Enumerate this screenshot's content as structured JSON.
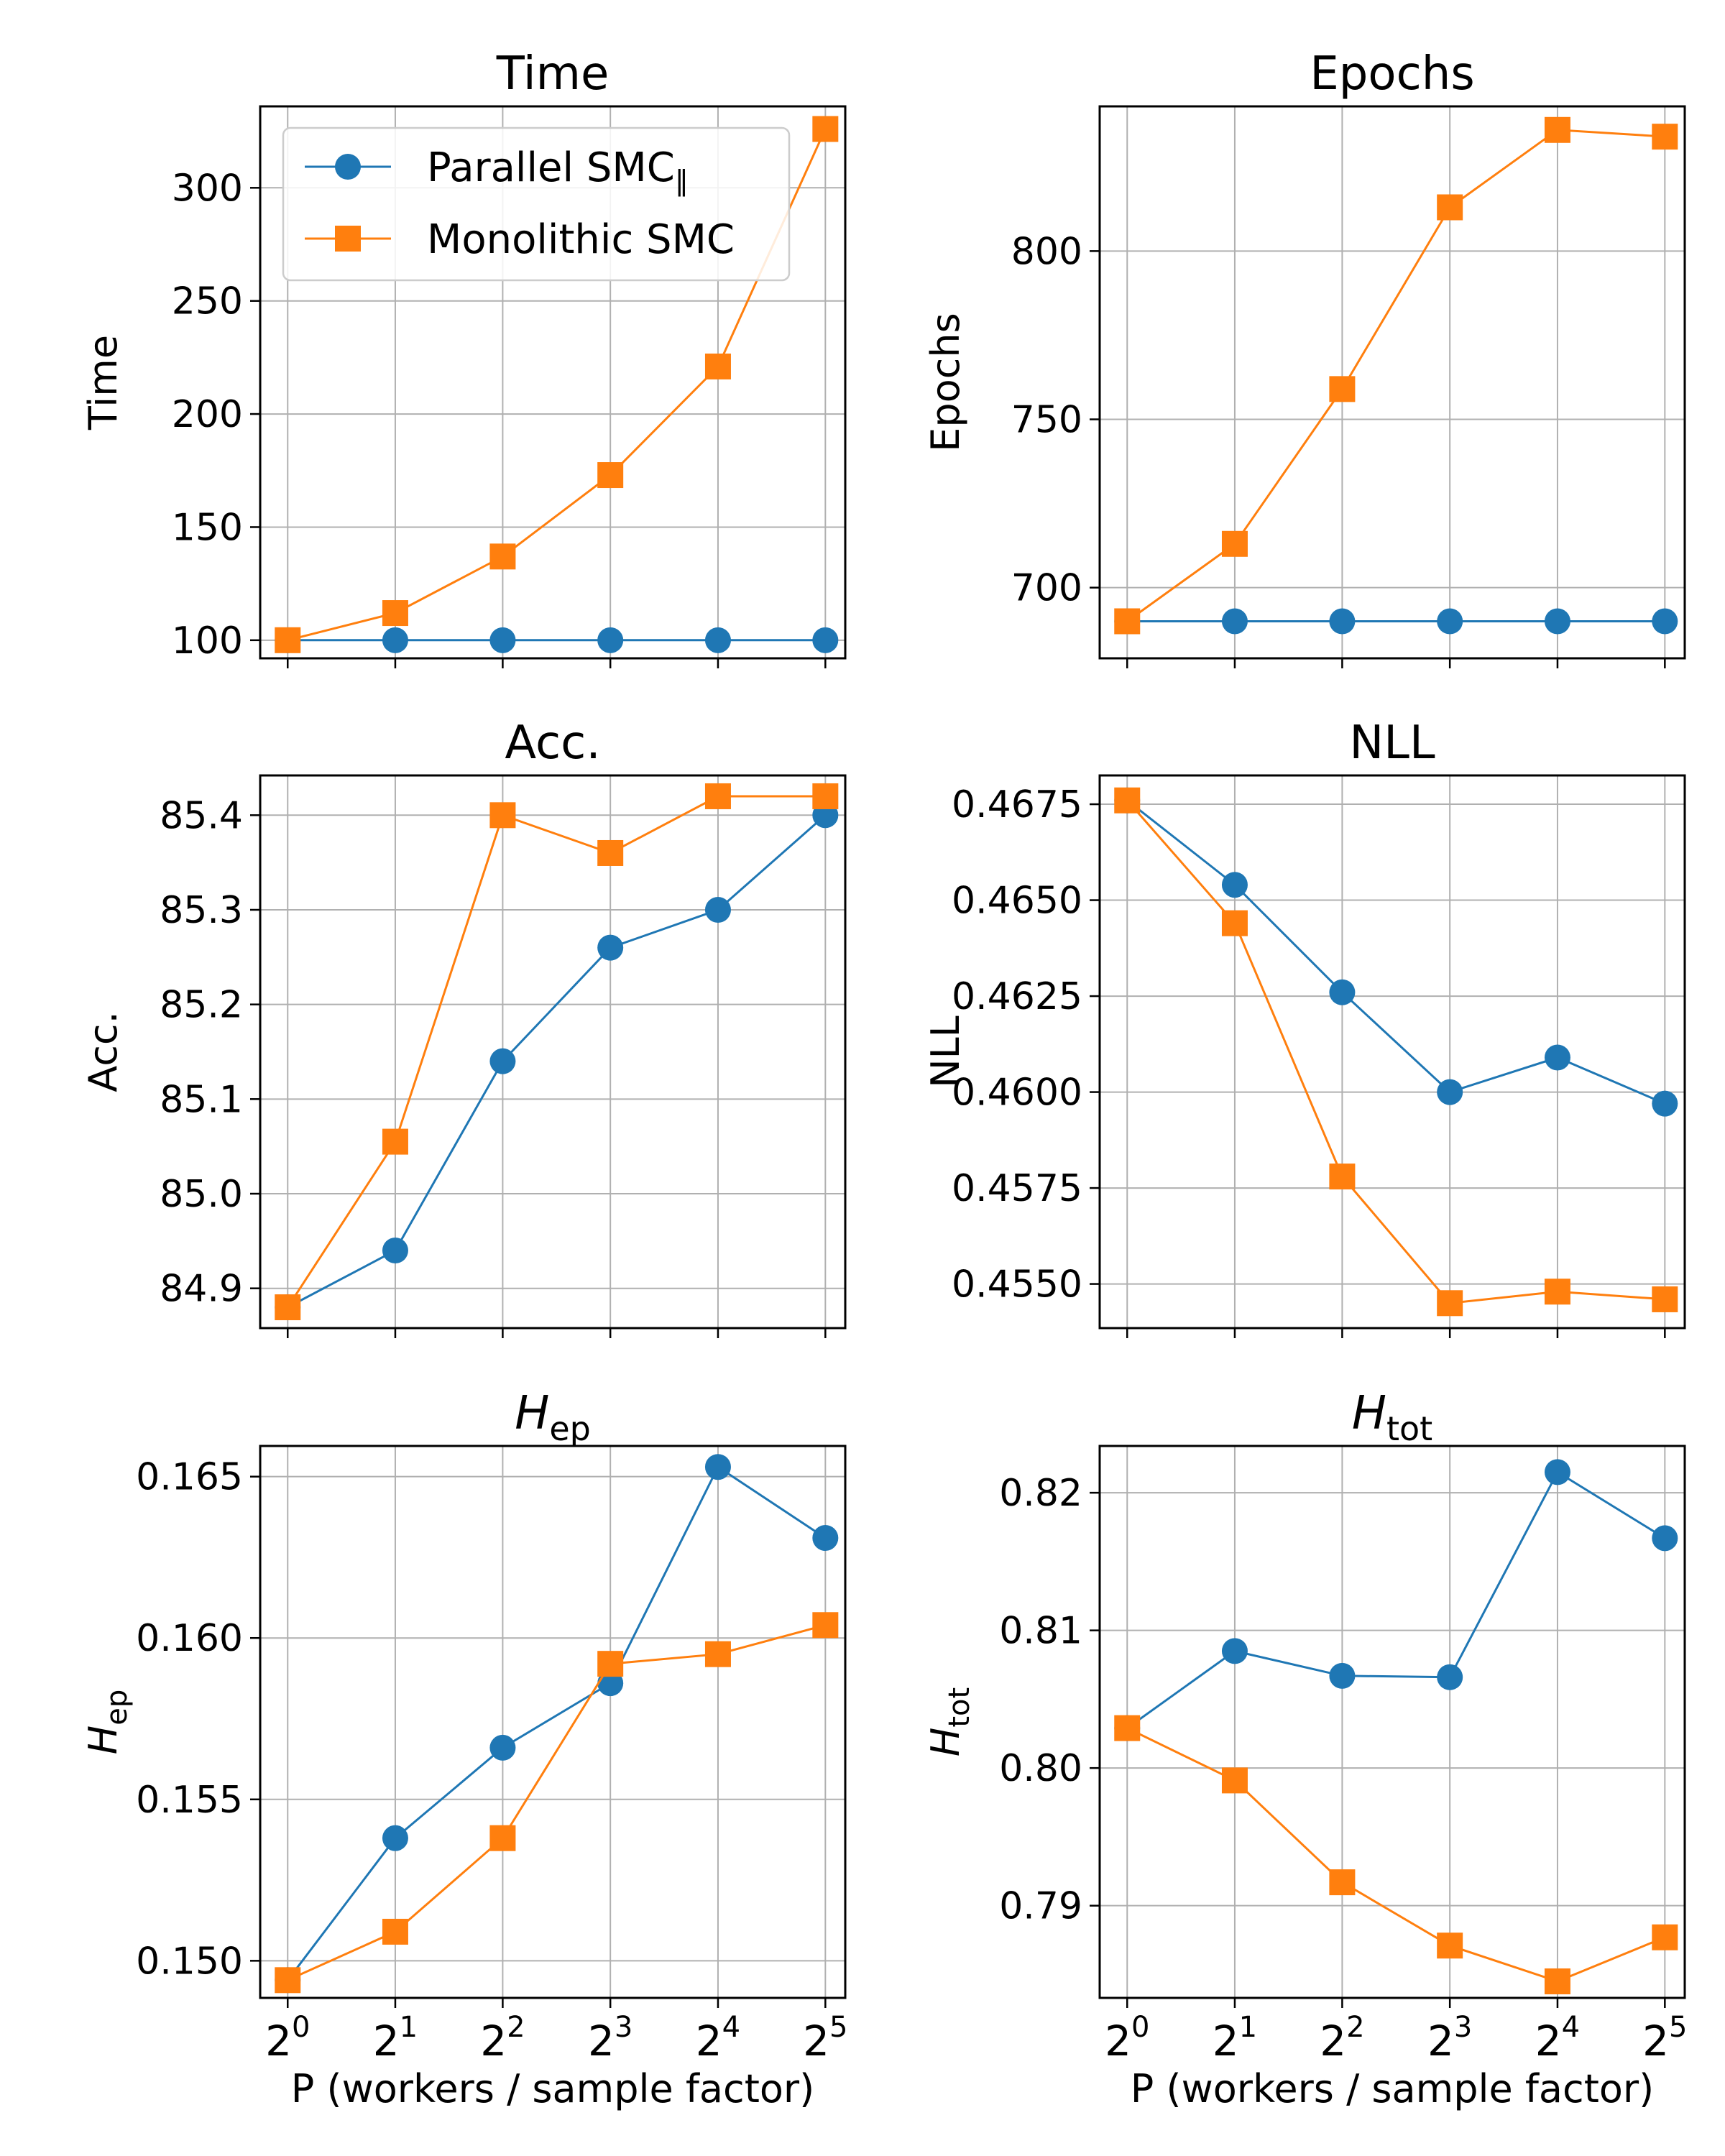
{
  "figure": {
    "xlabel": "P (workers / sample factor)",
    "x_base": "2",
    "x_exponents": [
      "0",
      "1",
      "2",
      "3",
      "4",
      "5"
    ]
  },
  "legend": {
    "entries": [
      {
        "label": "Parallel SMC",
        "subscript": "‖",
        "marker": "circle",
        "color": "#1f77b4"
      },
      {
        "label": "Monolithic SMC",
        "subscript": "",
        "marker": "square",
        "color": "#ff7f0e"
      }
    ]
  },
  "chart_data": [
    {
      "type": "line",
      "title": "Time",
      "ylabel": "Time",
      "x": [
        1,
        2,
        4,
        8,
        16,
        32
      ],
      "x_scale": "log2",
      "ylim": [
        92,
        336
      ],
      "yticks": [
        100,
        150,
        200,
        250,
        300
      ],
      "ytick_labels": [
        "100",
        "150",
        "200",
        "250",
        "300"
      ],
      "grid": true,
      "legend_position": "upper-left",
      "series": [
        {
          "name": "Parallel SMC‖",
          "color": "#1f77b4",
          "marker": "circle",
          "values": [
            100,
            100,
            100,
            100,
            100,
            100
          ]
        },
        {
          "name": "Monolithic SMC",
          "color": "#ff7f0e",
          "marker": "square",
          "values": [
            100,
            112,
            137,
            173,
            221,
            326
          ]
        }
      ]
    },
    {
      "type": "line",
      "title": "Epochs",
      "ylabel": "Epochs",
      "x": [
        1,
        2,
        4,
        8,
        16,
        32
      ],
      "x_scale": "log2",
      "ylim": [
        679,
        843
      ],
      "yticks": [
        700,
        750,
        800
      ],
      "ytick_labels": [
        "700",
        "750",
        "800"
      ],
      "grid": true,
      "series": [
        {
          "name": "Parallel SMC‖",
          "color": "#1f77b4",
          "marker": "circle",
          "values": [
            690,
            690,
            690,
            690,
            690,
            690
          ]
        },
        {
          "name": "Monolithic SMC",
          "color": "#ff7f0e",
          "marker": "square",
          "values": [
            690,
            713,
            759,
            813,
            836,
            834
          ]
        }
      ]
    },
    {
      "type": "line",
      "title": "Acc.",
      "ylabel": "Acc.",
      "x": [
        1,
        2,
        4,
        8,
        16,
        32
      ],
      "x_scale": "log2",
      "ylim": [
        84.858,
        85.442
      ],
      "yticks": [
        84.9,
        85.0,
        85.1,
        85.2,
        85.3,
        85.4
      ],
      "ytick_labels": [
        "84.9",
        "85.0",
        "85.1",
        "85.2",
        "85.3",
        "85.4"
      ],
      "grid": true,
      "series": [
        {
          "name": "Parallel SMC‖",
          "color": "#1f77b4",
          "marker": "circle",
          "values": [
            84.88,
            84.94,
            85.14,
            85.26,
            85.3,
            85.4
          ]
        },
        {
          "name": "Monolithic SMC",
          "color": "#ff7f0e",
          "marker": "square",
          "values": [
            84.88,
            85.055,
            85.4,
            85.36,
            85.42,
            85.42
          ]
        }
      ]
    },
    {
      "type": "line",
      "title": "NLL",
      "ylabel": "NLL",
      "x": [
        1,
        2,
        4,
        8,
        16,
        32
      ],
      "x_scale": "log2",
      "ylim": [
        0.45385,
        0.46825
      ],
      "yticks": [
        0.455,
        0.4575,
        0.46,
        0.4625,
        0.465,
        0.4675
      ],
      "ytick_labels": [
        "0.4550",
        "0.4575",
        "0.4600",
        "0.4625",
        "0.4650",
        "0.4675"
      ],
      "grid": true,
      "series": [
        {
          "name": "Parallel SMC‖",
          "color": "#1f77b4",
          "marker": "circle",
          "values": [
            0.4676,
            0.4654,
            0.4626,
            0.46,
            0.4609,
            0.4597
          ]
        },
        {
          "name": "Monolithic SMC",
          "color": "#ff7f0e",
          "marker": "square",
          "values": [
            0.4676,
            0.4644,
            0.4578,
            0.4545,
            0.4548,
            0.4546
          ]
        }
      ]
    },
    {
      "type": "line",
      "title": "H",
      "title_sub": "ep",
      "ylabel": "H",
      "ylabel_sub": "ep",
      "x": [
        1,
        2,
        4,
        8,
        16,
        32
      ],
      "x_scale": "log2",
      "ylim": [
        0.14885,
        0.16595
      ],
      "yticks": [
        0.15,
        0.155,
        0.16,
        0.165
      ],
      "ytick_labels": [
        "0.150",
        "0.155",
        "0.160",
        "0.165"
      ],
      "grid": true,
      "series": [
        {
          "name": "Parallel SMC‖",
          "color": "#1f77b4",
          "marker": "circle",
          "values": [
            0.1494,
            0.1538,
            0.1566,
            0.1586,
            0.1653,
            0.1631
          ]
        },
        {
          "name": "Monolithic SMC",
          "color": "#ff7f0e",
          "marker": "square",
          "values": [
            0.1494,
            0.1509,
            0.1538,
            0.1592,
            0.1595,
            0.1604
          ]
        }
      ]
    },
    {
      "type": "line",
      "title": "H",
      "title_sub": "tot",
      "ylabel": "H",
      "ylabel_sub": "tot",
      "x": [
        1,
        2,
        4,
        8,
        16,
        32
      ],
      "x_scale": "log2",
      "ylim": [
        0.7833,
        0.8234
      ],
      "yticks": [
        0.79,
        0.8,
        0.81,
        0.82
      ],
      "ytick_labels": [
        "0.79",
        "0.80",
        "0.81",
        "0.82"
      ],
      "grid": true,
      "series": [
        {
          "name": "Parallel SMC‖",
          "color": "#1f77b4",
          "marker": "circle",
          "values": [
            0.8029,
            0.8085,
            0.8067,
            0.8066,
            0.8215,
            0.8167
          ]
        },
        {
          "name": "Monolithic SMC",
          "color": "#ff7f0e",
          "marker": "square",
          "values": [
            0.8029,
            0.7991,
            0.7917,
            0.7871,
            0.7845,
            0.7877
          ]
        }
      ]
    }
  ]
}
